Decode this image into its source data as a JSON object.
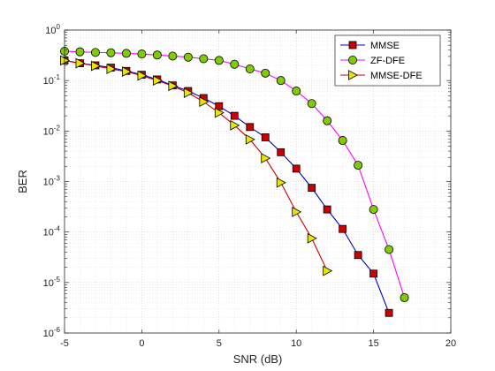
{
  "chart_data": {
    "type": "line",
    "xlabel": "SNR (dB)",
    "ylabel": "BER",
    "xlim": [
      -5,
      20
    ],
    "ylim": [
      1e-06,
      1
    ],
    "yscale": "log",
    "grid": true,
    "minor_grid": true,
    "legend_position": "top-right",
    "x_ticks": [
      "-5",
      "0",
      "5",
      "10",
      "15",
      "20"
    ],
    "y_ticks": [
      {
        "base": "10",
        "exp": "0"
      },
      {
        "base": "10",
        "exp": "-1"
      },
      {
        "base": "10",
        "exp": "-2"
      },
      {
        "base": "10",
        "exp": "-3"
      },
      {
        "base": "10",
        "exp": "-4"
      },
      {
        "base": "10",
        "exp": "-5"
      },
      {
        "base": "10",
        "exp": "-6"
      }
    ],
    "series": [
      {
        "name": "MMSE",
        "color": "#0000cc",
        "marker": "square",
        "marker_color": "#cc0000",
        "x": [
          -5,
          -4,
          -3,
          -2,
          -1,
          0,
          1,
          2,
          3,
          4,
          5,
          6,
          7,
          8,
          9,
          10,
          11,
          12,
          13,
          14,
          15,
          16
        ],
        "y": [
          0.25,
          0.22,
          0.2,
          0.18,
          0.155,
          0.13,
          0.105,
          0.08,
          0.062,
          0.045,
          0.031,
          0.02,
          0.012,
          0.0075,
          0.0038,
          0.0018,
          0.00075,
          0.00028,
          0.000115,
          3.5e-05,
          1.5e-05,
          2.5e-06
        ]
      },
      {
        "name": "ZF-DFE",
        "color": "#ff00ff",
        "marker": "circle",
        "marker_color": "#7fcc00",
        "x": [
          -5,
          -4,
          -3,
          -2,
          -1,
          0,
          1,
          2,
          3,
          4,
          5,
          6,
          7,
          8,
          9,
          10,
          11,
          12,
          13,
          14,
          15,
          16,
          17
        ],
        "y": [
          0.38,
          0.37,
          0.36,
          0.355,
          0.345,
          0.335,
          0.32,
          0.305,
          0.29,
          0.27,
          0.25,
          0.21,
          0.17,
          0.14,
          0.1,
          0.062,
          0.035,
          0.016,
          0.0065,
          0.0021,
          0.00028,
          4.5e-05,
          5e-06
        ]
      },
      {
        "name": "MMSE-DFE",
        "color": "#cc0000",
        "marker": "triangle-right",
        "marker_color": "#e6e600",
        "x": [
          -5,
          -4,
          -3,
          -2,
          -1,
          0,
          1,
          2,
          3,
          4,
          5,
          6,
          7,
          8,
          9,
          10,
          11,
          12
        ],
        "y": [
          0.25,
          0.22,
          0.195,
          0.17,
          0.15,
          0.125,
          0.1,
          0.078,
          0.057,
          0.038,
          0.023,
          0.013,
          0.0068,
          0.0029,
          0.00095,
          0.00025,
          7.5e-05,
          1.7e-05
        ]
      }
    ]
  }
}
